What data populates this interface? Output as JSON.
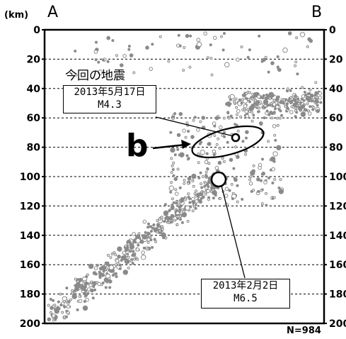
{
  "header": {
    "unit": "(km)",
    "left_end": "A",
    "right_end": "B"
  },
  "axis": {
    "depth_min": 0,
    "depth_max": 200,
    "left_ticks": [
      "0",
      "20",
      "40",
      "60",
      "80",
      "100",
      "120",
      "140",
      "160",
      "180",
      "200"
    ],
    "right_ticks": [
      "0",
      "20",
      "40",
      "60",
      "80",
      "100",
      "120",
      "140",
      "160",
      "180",
      "200"
    ]
  },
  "title": "今回の地震",
  "events": [
    {
      "date": "2013年5月17日",
      "magnitude": "M4.3"
    },
    {
      "date": "2013年2月2日",
      "magnitude": "M6.5"
    }
  ],
  "region_label": "b",
  "count_label": "N=984",
  "colors": {
    "scatter": "#8a8a8a",
    "frame": "#000000",
    "grid": "#000000"
  }
}
